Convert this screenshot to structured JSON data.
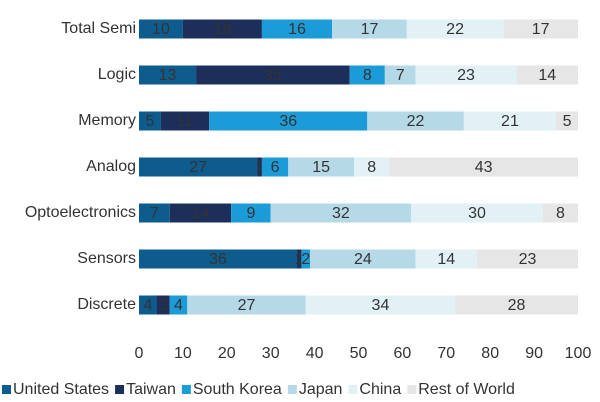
{
  "chart_data": {
    "type": "stacked-bar-horizontal",
    "categories": [
      "Total Semi",
      "Logic",
      "Memory",
      "Analog",
      "Optoelectronics",
      "Sensors",
      "Discrete"
    ],
    "series": [
      {
        "name": "United States",
        "color": "#0e5c8e",
        "values": [
          10,
          13,
          5,
          27,
          7,
          36,
          4
        ]
      },
      {
        "name": "Taiwan",
        "color": "#1c2f5b",
        "values": [
          18,
          35,
          11,
          1,
          14,
          1,
          3
        ]
      },
      {
        "name": "South Korea",
        "color": "#1b9bd7",
        "values": [
          16,
          8,
          36,
          6,
          9,
          2,
          4
        ]
      },
      {
        "name": "Japan",
        "color": "#b6d9e7",
        "values": [
          17,
          7,
          22,
          15,
          32,
          24,
          27
        ]
      },
      {
        "name": "China",
        "color": "#e2f1f6",
        "values": [
          22,
          23,
          21,
          8,
          30,
          14,
          34
        ]
      },
      {
        "name": "Rest of World",
        "color": "#e6e6e6",
        "values": [
          17,
          14,
          5,
          43,
          8,
          23,
          28
        ]
      }
    ],
    "xlim": [
      0,
      100
    ],
    "xticks": [
      0,
      10,
      20,
      30,
      40,
      50,
      60,
      70,
      80,
      90,
      100
    ]
  }
}
